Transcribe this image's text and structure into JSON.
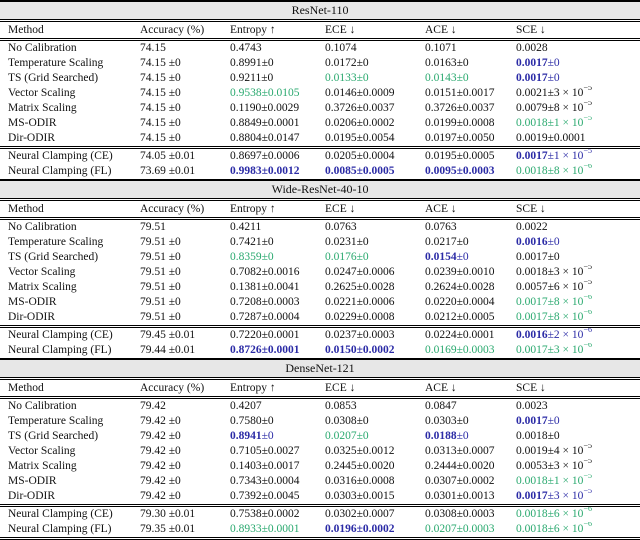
{
  "colors": {
    "green": "#2aa96f",
    "blue": "#2b2ba6",
    "band_bg": "#e7e7e7",
    "text": "#111111"
  },
  "columns": [
    "Method",
    "Accuracy (%)",
    "Entropy ↑",
    "ECE ↓",
    "ACE ↓",
    "SCE ↓"
  ],
  "sections": [
    {
      "title": "ResNet-110",
      "rows": [
        {
          "method": "No Calibration",
          "acc": "74.15",
          "metrics": [
            {
              "v": "0.4743",
              "vs": "k"
            },
            {
              "v": "0.1074",
              "vs": "k"
            },
            {
              "v": "0.1071",
              "vs": "k"
            },
            {
              "v": "0.0028",
              "vs": "k"
            }
          ]
        },
        {
          "method": "Temperature Scaling",
          "acc": "74.15 ±0",
          "metrics": [
            {
              "v": "0.8991",
              "vs": "k",
              "e": "±0",
              "es": "k"
            },
            {
              "v": "0.0172",
              "vs": "k",
              "e": "±0",
              "es": "k"
            },
            {
              "v": "0.0163",
              "vs": "k",
              "e": "±0",
              "es": "k"
            },
            {
              "v": "0.0017",
              "vs": "bb",
              "e": "±0",
              "es": "bl"
            }
          ]
        },
        {
          "method": "TS (Grid Searched)",
          "acc": "74.15 ±0",
          "metrics": [
            {
              "v": "0.9211",
              "vs": "k",
              "e": "±0",
              "es": "k"
            },
            {
              "v": "0.0133",
              "vs": "g",
              "e": "±0",
              "es": "g"
            },
            {
              "v": "0.0143",
              "vs": "g",
              "e": "±0",
              "es": "g"
            },
            {
              "v": "0.0017",
              "vs": "bb",
              "e": "±0",
              "es": "bl"
            }
          ]
        },
        {
          "method": "Vector Scaling",
          "acc": "74.15 ±0",
          "metrics": [
            {
              "v": "0.9538",
              "vs": "g",
              "e": "±0.0105",
              "es": "g"
            },
            {
              "v": "0.0146",
              "vs": "k",
              "e": "±0.0009",
              "es": "k"
            },
            {
              "v": "0.0151",
              "vs": "k",
              "e": "±0.0017",
              "es": "k"
            },
            {
              "v": "0.0021",
              "vs": "k",
              "e": "±3 × 10",
              "es": "k",
              "x": "−5"
            }
          ]
        },
        {
          "method": "Matrix Scaling",
          "acc": "74.15 ±0",
          "metrics": [
            {
              "v": "0.1190",
              "vs": "k",
              "e": "±0.0029",
              "es": "k"
            },
            {
              "v": "0.3726",
              "vs": "k",
              "e": "±0.0037",
              "es": "k"
            },
            {
              "v": "0.3726",
              "vs": "k",
              "e": "±0.0037",
              "es": "k"
            },
            {
              "v": "0.0079",
              "vs": "k",
              "e": "±8 × 10",
              "es": "k",
              "x": "−5"
            }
          ]
        },
        {
          "method": "MS-ODIR",
          "acc": "74.15 ±0",
          "metrics": [
            {
              "v": "0.8849",
              "vs": "k",
              "e": "±0.0001",
              "es": "k"
            },
            {
              "v": "0.0206",
              "vs": "k",
              "e": "±0.0002",
              "es": "k"
            },
            {
              "v": "0.0199",
              "vs": "k",
              "e": "±0.0008",
              "es": "k"
            },
            {
              "v": "0.0018",
              "vs": "g",
              "e": "±1 × 10",
              "es": "g",
              "x": "−5"
            }
          ]
        },
        {
          "method": "Dir-ODIR",
          "acc": "74.15 ±0",
          "metrics": [
            {
              "v": "0.8804",
              "vs": "k",
              "e": "±0.0147",
              "es": "k"
            },
            {
              "v": "0.0195",
              "vs": "k",
              "e": "±0.0054",
              "es": "k"
            },
            {
              "v": "0.0197",
              "vs": "k",
              "e": "±0.0050",
              "es": "k"
            },
            {
              "v": "0.0019",
              "vs": "k",
              "e": "±0.0001",
              "es": "k"
            }
          ]
        },
        {
          "method": "Neural Clamping (CE)",
          "acc": "74.05 ±0.01",
          "sep": true,
          "metrics": [
            {
              "v": "0.8697",
              "vs": "k",
              "e": "±0.0006",
              "es": "k"
            },
            {
              "v": "0.0205",
              "vs": "k",
              "e": "±0.0004",
              "es": "k"
            },
            {
              "v": "0.0195",
              "vs": "k",
              "e": "±0.0005",
              "es": "k"
            },
            {
              "v": "0.0017",
              "vs": "bb",
              "e": "±1 × 10",
              "es": "bl",
              "x": "−5"
            }
          ]
        },
        {
          "method": "Neural Clamping (FL)",
          "acc": "73.69 ±0.01",
          "metrics": [
            {
              "v": "0.9983",
              "vs": "bb",
              "e": "±0.0012",
              "es": "bb"
            },
            {
              "v": "0.0085",
              "vs": "bb",
              "e": "±0.0005",
              "es": "bb"
            },
            {
              "v": "0.0095",
              "vs": "bb",
              "e": "±0.0003",
              "es": "bb"
            },
            {
              "v": "0.0018",
              "vs": "g",
              "e": "±8 × 10",
              "es": "g",
              "x": "−6"
            }
          ]
        }
      ]
    },
    {
      "title": "Wide-ResNet-40-10",
      "rows": [
        {
          "method": "No Calibration",
          "acc": "79.51",
          "metrics": [
            {
              "v": "0.4211",
              "vs": "k"
            },
            {
              "v": "0.0763",
              "vs": "k"
            },
            {
              "v": "0.0763",
              "vs": "k"
            },
            {
              "v": "0.0022",
              "vs": "k"
            }
          ]
        },
        {
          "method": "Temperature Scaling",
          "acc": "79.51 ±0",
          "metrics": [
            {
              "v": "0.7421",
              "vs": "k",
              "e": "±0",
              "es": "k"
            },
            {
              "v": "0.0231",
              "vs": "k",
              "e": "±0",
              "es": "k"
            },
            {
              "v": "0.0217",
              "vs": "k",
              "e": "±0",
              "es": "k"
            },
            {
              "v": "0.0016",
              "vs": "bb",
              "e": "±0",
              "es": "bl"
            }
          ]
        },
        {
          "method": "TS (Grid Searched)",
          "acc": "79.51 ±0",
          "metrics": [
            {
              "v": "0.8359",
              "vs": "g",
              "e": "±0",
              "es": "g"
            },
            {
              "v": "0.0176",
              "vs": "g",
              "e": "±0",
              "es": "g"
            },
            {
              "v": "0.0154",
              "vs": "bb",
              "e": "±0",
              "es": "bl"
            },
            {
              "v": "0.0017",
              "vs": "k",
              "e": "±0",
              "es": "k"
            }
          ]
        },
        {
          "method": "Vector Scaling",
          "acc": "79.51 ±0",
          "metrics": [
            {
              "v": "0.7082",
              "vs": "k",
              "e": "±0.0016",
              "es": "k"
            },
            {
              "v": "0.0247",
              "vs": "k",
              "e": "±0.0006",
              "es": "k"
            },
            {
              "v": "0.0239",
              "vs": "k",
              "e": "±0.0010",
              "es": "k"
            },
            {
              "v": "0.0018",
              "vs": "k",
              "e": "±3 × 10",
              "es": "k",
              "x": "−5"
            }
          ]
        },
        {
          "method": "Matrix Scaling",
          "acc": "79.51 ±0",
          "metrics": [
            {
              "v": "0.1381",
              "vs": "k",
              "e": "±0.0041",
              "es": "k"
            },
            {
              "v": "0.2625",
              "vs": "k",
              "e": "±0.0028",
              "es": "k"
            },
            {
              "v": "0.2624",
              "vs": "k",
              "e": "±0.0028",
              "es": "k"
            },
            {
              "v": "0.0057",
              "vs": "k",
              "e": "±6 × 10",
              "es": "k",
              "x": "−5"
            }
          ]
        },
        {
          "method": "MS-ODIR",
          "acc": "79.51 ±0",
          "metrics": [
            {
              "v": "0.7208",
              "vs": "k",
              "e": "±0.0003",
              "es": "k"
            },
            {
              "v": "0.0221",
              "vs": "k",
              "e": "±0.0006",
              "es": "k"
            },
            {
              "v": "0.0220",
              "vs": "k",
              "e": "±0.0004",
              "es": "k"
            },
            {
              "v": "0.0017",
              "vs": "g",
              "e": "±8 × 10",
              "es": "g",
              "x": "−6"
            }
          ]
        },
        {
          "method": "Dir-ODIR",
          "acc": "79.51 ±0",
          "metrics": [
            {
              "v": "0.7287",
              "vs": "k",
              "e": "±0.0004",
              "es": "k"
            },
            {
              "v": "0.0229",
              "vs": "k",
              "e": "±0.0008",
              "es": "k"
            },
            {
              "v": "0.0212",
              "vs": "k",
              "e": "±0.0005",
              "es": "k"
            },
            {
              "v": "0.0017",
              "vs": "g",
              "e": "±8 × 10",
              "es": "g",
              "x": "−6"
            }
          ]
        },
        {
          "method": "Neural Clamping (CE)",
          "acc": "79.45 ±0.01",
          "sep": true,
          "metrics": [
            {
              "v": "0.7220",
              "vs": "k",
              "e": "±0.0001",
              "es": "k"
            },
            {
              "v": "0.0237",
              "vs": "k",
              "e": "±0.0003",
              "es": "k"
            },
            {
              "v": "0.0224",
              "vs": "k",
              "e": "±0.0001",
              "es": "k"
            },
            {
              "v": "0.0016",
              "vs": "bb",
              "e": "±2 × 10",
              "es": "bl",
              "x": "−6"
            }
          ]
        },
        {
          "method": "Neural Clamping (FL)",
          "acc": "79.44 ±0.01",
          "metrics": [
            {
              "v": "0.8726",
              "vs": "bb",
              "e": "±0.0001",
              "es": "bb"
            },
            {
              "v": "0.0150",
              "vs": "bb",
              "e": "±0.0002",
              "es": "bb"
            },
            {
              "v": "0.0169",
              "vs": "g",
              "e": "±0.0003",
              "es": "g"
            },
            {
              "v": "0.0017",
              "vs": "g",
              "e": "±3 × 10",
              "es": "g",
              "x": "−6"
            }
          ]
        }
      ]
    },
    {
      "title": "DenseNet-121",
      "rows": [
        {
          "method": "No Calibration",
          "acc": "79.42",
          "metrics": [
            {
              "v": "0.4207",
              "vs": "k"
            },
            {
              "v": "0.0853",
              "vs": "k"
            },
            {
              "v": "0.0847",
              "vs": "k"
            },
            {
              "v": "0.0023",
              "vs": "k"
            }
          ]
        },
        {
          "method": "Temperature Scaling",
          "acc": "79.42 ±0",
          "metrics": [
            {
              "v": "0.7580",
              "vs": "k",
              "e": "±0",
              "es": "k"
            },
            {
              "v": "0.0308",
              "vs": "k",
              "e": "±0",
              "es": "k"
            },
            {
              "v": "0.0303",
              "vs": "k",
              "e": "±0",
              "es": "k"
            },
            {
              "v": "0.0017",
              "vs": "bb",
              "e": "±0",
              "es": "bl"
            }
          ]
        },
        {
          "method": "TS (Grid Searched)",
          "acc": "79.42 ±0",
          "metrics": [
            {
              "v": "0.8941",
              "vs": "bb",
              "e": "±0",
              "es": "bl"
            },
            {
              "v": "0.0207",
              "vs": "g",
              "e": "±0",
              "es": "g"
            },
            {
              "v": "0.0188",
              "vs": "bb",
              "e": "±0",
              "es": "bl"
            },
            {
              "v": "0.0018",
              "vs": "k",
              "e": "±0",
              "es": "k"
            }
          ]
        },
        {
          "method": "Vector Scaling",
          "acc": "79.42 ±0",
          "metrics": [
            {
              "v": "0.7105",
              "vs": "k",
              "e": "±0.0027",
              "es": "k"
            },
            {
              "v": "0.0325",
              "vs": "k",
              "e": "±0.0012",
              "es": "k"
            },
            {
              "v": "0.0313",
              "vs": "k",
              "e": "±0.0007",
              "es": "k"
            },
            {
              "v": "0.0019",
              "vs": "k",
              "e": "±4 × 10",
              "es": "k",
              "x": "−5"
            }
          ]
        },
        {
          "method": "Matrix Scaling",
          "acc": "79.42 ±0",
          "metrics": [
            {
              "v": "0.1403",
              "vs": "k",
              "e": "±0.0017",
              "es": "k"
            },
            {
              "v": "0.2445",
              "vs": "k",
              "e": "±0.0020",
              "es": "k"
            },
            {
              "v": "0.2444",
              "vs": "k",
              "e": "±0.0020",
              "es": "k"
            },
            {
              "v": "0.0053",
              "vs": "k",
              "e": "±3 × 10",
              "es": "k",
              "x": "−5"
            }
          ]
        },
        {
          "method": "MS-ODIR",
          "acc": "79.42 ±0",
          "metrics": [
            {
              "v": "0.7343",
              "vs": "k",
              "e": "±0.0004",
              "es": "k"
            },
            {
              "v": "0.0316",
              "vs": "k",
              "e": "±0.0008",
              "es": "k"
            },
            {
              "v": "0.0307",
              "vs": "k",
              "e": "±0.0002",
              "es": "k"
            },
            {
              "v": "0.0018",
              "vs": "g",
              "e": "±1 × 10",
              "es": "g",
              "x": "−5"
            }
          ]
        },
        {
          "method": "Dir-ODIR",
          "acc": "79.42 ±0",
          "metrics": [
            {
              "v": "0.7392",
              "vs": "k",
              "e": "±0.0045",
              "es": "k"
            },
            {
              "v": "0.0303",
              "vs": "k",
              "e": "±0.0015",
              "es": "k"
            },
            {
              "v": "0.0301",
              "vs": "k",
              "e": "±0.0013",
              "es": "k"
            },
            {
              "v": "0.0017",
              "vs": "bb",
              "e": "±3 × 10",
              "es": "bl",
              "x": "−5"
            }
          ]
        },
        {
          "method": "Neural Clamping (CE)",
          "acc": "79.30 ±0.01",
          "sep": true,
          "metrics": [
            {
              "v": "0.7538",
              "vs": "k",
              "e": "±0.0002",
              "es": "k"
            },
            {
              "v": "0.0302",
              "vs": "k",
              "e": "±0.0007",
              "es": "k"
            },
            {
              "v": "0.0308",
              "vs": "k",
              "e": "±0.0003",
              "es": "k"
            },
            {
              "v": "0.0018",
              "vs": "g",
              "e": "±6 × 10",
              "es": "g",
              "x": "−6"
            }
          ]
        },
        {
          "method": "Neural Clamping (FL)",
          "acc": "79.35 ±0.01",
          "metrics": [
            {
              "v": "0.8933",
              "vs": "g",
              "e": "±0.0001",
              "es": "g"
            },
            {
              "v": "0.0196",
              "vs": "bb",
              "e": "±0.0002",
              "es": "bb"
            },
            {
              "v": "0.0207",
              "vs": "g",
              "e": "±0.0003",
              "es": "g"
            },
            {
              "v": "0.0018",
              "vs": "g",
              "e": "±6 × 10",
              "es": "g",
              "x": "−6"
            }
          ]
        }
      ]
    }
  ]
}
